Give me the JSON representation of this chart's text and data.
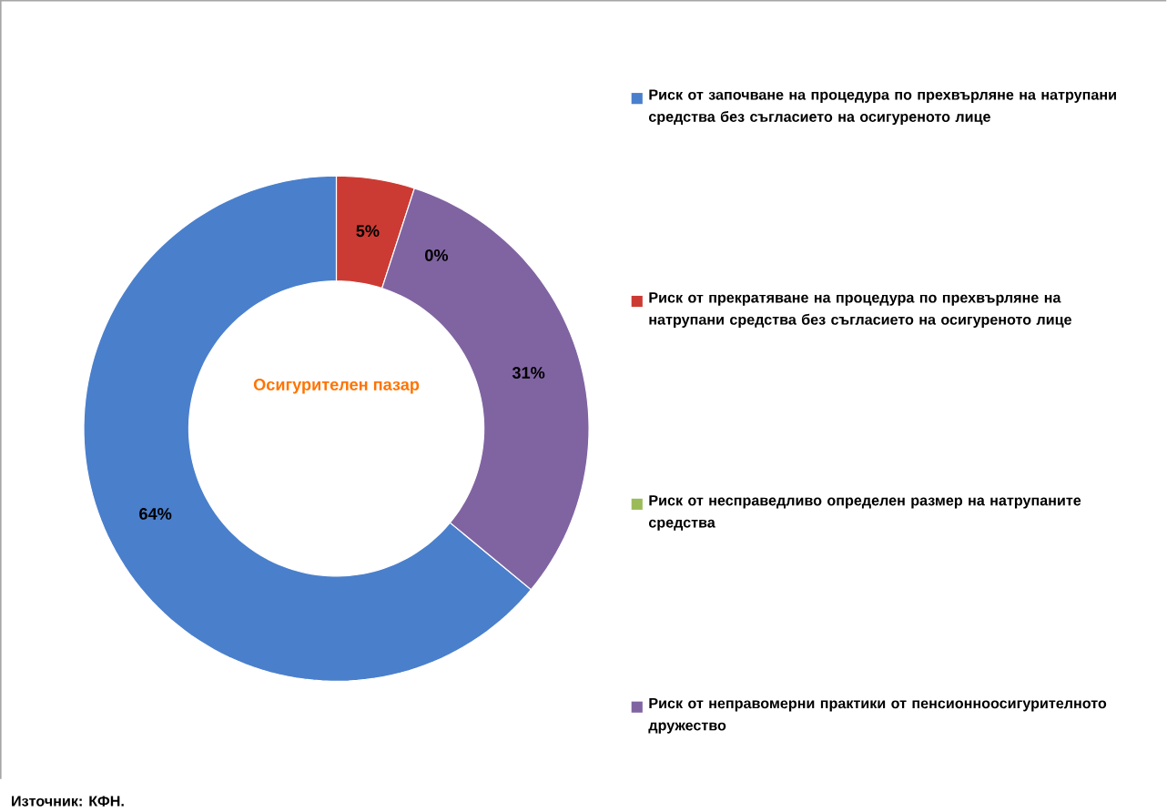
{
  "chart_data": {
    "type": "donut",
    "categories": [
      "Риск от започване  на процедура по прехвърляне на натрупани средства без съгласието на осигуреното лице",
      "Риск от прекратяване на процедура по прехвърляне на натрупани средства без съгласието на осигуреното лице",
      "Риск от несправедливо определен размер на натрупаните средства",
      "Риск от неправомерни практики от пенсионноосигурителното дружество"
    ],
    "values": [
      64,
      5,
      0,
      31
    ],
    "colors": [
      "#4a7fcc",
      "#cc3b33",
      "#9bbb59",
      "#8064a2"
    ],
    "value_labels": [
      "64%",
      "5%",
      "0%",
      "31%"
    ],
    "legend": "right",
    "annotations": [
      "Осигурителен пазар",
      "Източник: КФН."
    ]
  }
}
